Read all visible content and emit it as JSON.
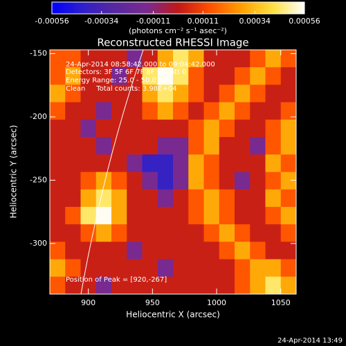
{
  "chart_data": {
    "type": "heatmap",
    "title": "Reconstructed RHESSI Image",
    "x_label": "Heliocentric X (arcsec)",
    "y_label": "Heliocentric Y (arcsec)",
    "colorbar_label": "(photons cm⁻² s⁻¹ asec⁻²)",
    "annotations": [
      "24-Apr-2014 08:58:42.000 to 09:04:42.000",
      "Detectors: 3F 5F 6F 7F 8F 9F, Att 0",
      "Energy Range: 25.0 - 50.0 keV",
      "Clean     Total counts: 3.98E+04"
    ],
    "peak_label": "Position of Peak = [920,-267]",
    "footer": "24-Apr-2014 13:49",
    "xlim": [
      870,
      1062
    ],
    "ylim": [
      -340,
      -147
    ],
    "xticks": [
      900,
      950,
      1000,
      1050
    ],
    "yticks": [
      -150,
      -200,
      -250,
      -300
    ],
    "clim": [
      -0.00056,
      0.00056
    ],
    "cticks": [
      -0.00056,
      -0.00034,
      -0.00011,
      0.00011,
      0.00034,
      0.00056
    ],
    "colormap": [
      "#0000ff",
      "#3020c8",
      "#5828a0",
      "#7a2a90",
      "#c01818",
      "#ff5000",
      "#ffa000",
      "#ffe040",
      "#ffffff"
    ],
    "z": [
      [
        0.00015,
        0.00015,
        2e-05,
        2e-05,
        2e-05,
        -0.00015,
        2e-05,
        0.0003,
        0.00045,
        0.0003,
        2e-05,
        2e-05,
        2e-05,
        0.00015,
        0.0003,
        0.00015
      ],
      [
        0.00015,
        0.0003,
        2e-05,
        2e-05,
        -0.00015,
        2e-05,
        0.00045,
        0.00055,
        0.00045,
        0.00015,
        2e-05,
        2e-05,
        0.00015,
        0.0003,
        0.00015,
        2e-05
      ],
      [
        0.0003,
        0.00015,
        2e-05,
        2e-05,
        2e-05,
        2e-05,
        0.0003,
        0.00045,
        0.0003,
        0.00015,
        2e-05,
        0.00015,
        0.0003,
        0.00015,
        2e-05,
        2e-05
      ],
      [
        0.00015,
        2e-05,
        2e-05,
        -0.00015,
        2e-05,
        2e-05,
        0.00015,
        0.0003,
        0.00015,
        2e-05,
        0.00015,
        0.0003,
        0.00015,
        2e-05,
        2e-05,
        0.00015
      ],
      [
        2e-05,
        2e-05,
        -0.00015,
        2e-05,
        2e-05,
        2e-05,
        2e-05,
        2e-05,
        2e-05,
        0.00015,
        0.0003,
        0.00015,
        2e-05,
        2e-05,
        0.00015,
        0.0003
      ],
      [
        2e-05,
        2e-05,
        2e-05,
        -0.00015,
        2e-05,
        2e-05,
        2e-05,
        -0.00015,
        -0.00015,
        0.00015,
        0.0003,
        2e-05,
        2e-05,
        -0.00015,
        0.00015,
        0.0003
      ],
      [
        2e-05,
        2e-05,
        2e-05,
        2e-05,
        2e-05,
        -0.00015,
        -0.0004,
        -0.0004,
        -0.00015,
        0.0003,
        0.00015,
        2e-05,
        2e-05,
        2e-05,
        0.0003,
        0.00015
      ],
      [
        2e-05,
        2e-05,
        0.00015,
        0.0003,
        0.00015,
        2e-05,
        -0.00015,
        -0.0004,
        -0.00015,
        0.0003,
        0.00015,
        2e-05,
        -0.00015,
        2e-05,
        0.00015,
        0.0003
      ],
      [
        2e-05,
        2e-05,
        0.0003,
        0.00045,
        0.0003,
        2e-05,
        2e-05,
        -0.00015,
        2e-05,
        0.00015,
        0.0003,
        0.00015,
        2e-05,
        2e-05,
        0.0003,
        0.00015
      ],
      [
        2e-05,
        0.00015,
        0.00045,
        0.00055,
        0.0003,
        2e-05,
        2e-05,
        2e-05,
        2e-05,
        0.00015,
        0.0003,
        0.00015,
        2e-05,
        2e-05,
        0.00015,
        0.0003
      ],
      [
        2e-05,
        2e-05,
        0.00015,
        0.0003,
        0.00015,
        2e-05,
        2e-05,
        2e-05,
        2e-05,
        2e-05,
        0.00015,
        0.0003,
        0.00015,
        2e-05,
        2e-05,
        0.00015
      ],
      [
        0.00015,
        2e-05,
        2e-05,
        2e-05,
        2e-05,
        -0.00015,
        2e-05,
        2e-05,
        2e-05,
        2e-05,
        2e-05,
        0.00015,
        0.0003,
        0.00015,
        2e-05,
        2e-05
      ],
      [
        0.0003,
        0.00015,
        2e-05,
        2e-05,
        2e-05,
        2e-05,
        2e-05,
        -0.00015,
        2e-05,
        2e-05,
        2e-05,
        2e-05,
        0.00015,
        0.0003,
        0.0003,
        0.00015
      ],
      [
        0.00015,
        2e-05,
        2e-05,
        -0.00015,
        2e-05,
        2e-05,
        2e-05,
        2e-05,
        2e-05,
        2e-05,
        2e-05,
        2e-05,
        0.00015,
        0.0003,
        0.00045,
        0.0003
      ]
    ]
  }
}
